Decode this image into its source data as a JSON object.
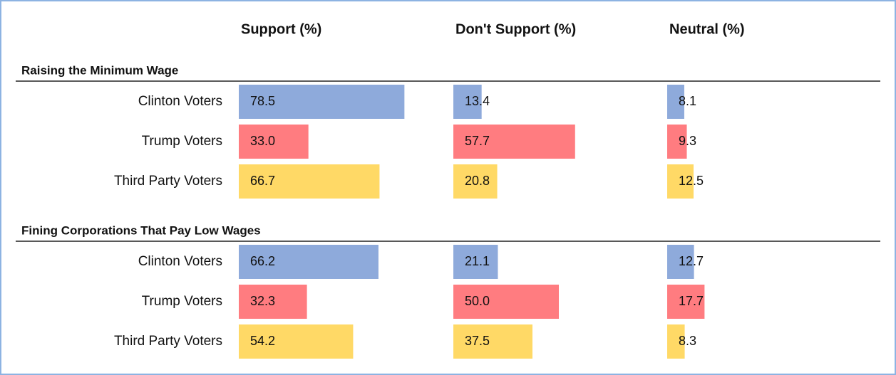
{
  "columns": [
    "Support (%)",
    "Don't Support (%)",
    "Neutral (%)"
  ],
  "sections": [
    {
      "title": "Raising the Minimum Wage",
      "rows": [
        {
          "label": "Clinton Voters",
          "color": "#8eaadb",
          "values": [
            78.5,
            13.4,
            8.1
          ],
          "value_labels": [
            "78.5",
            "13.4",
            "8.1"
          ]
        },
        {
          "label": "Trump Voters",
          "color": "#ff7c80",
          "values": [
            33,
            57.7,
            9.3
          ],
          "value_labels": [
            "33.0",
            "57.7",
            "9.3"
          ]
        },
        {
          "label": "Third Party Voters",
          "color": "#ffd966",
          "values": [
            66.7,
            20.8,
            12.5
          ],
          "value_labels": [
            "66.7",
            "20.8",
            "12.5"
          ]
        }
      ]
    },
    {
      "title": "Fining Corporations That Pay Low Wages",
      "rows": [
        {
          "label": "Clinton Voters",
          "color": "#8eaadb",
          "values": [
            66.2,
            21.1,
            12.7
          ],
          "value_labels": [
            "66.2",
            "21.1",
            "12.7"
          ]
        },
        {
          "label": "Trump Voters",
          "color": "#ff7c80",
          "values": [
            32.3,
            50,
            17.7
          ],
          "value_labels": [
            "32.3",
            "50.0",
            "17.7"
          ]
        },
        {
          "label": "Third Party Voters",
          "color": "#ffd966",
          "values": [
            54.2,
            37.5,
            8.3
          ],
          "value_labels": [
            "54.2",
            "37.5",
            "8.3"
          ]
        }
      ]
    }
  ]
}
